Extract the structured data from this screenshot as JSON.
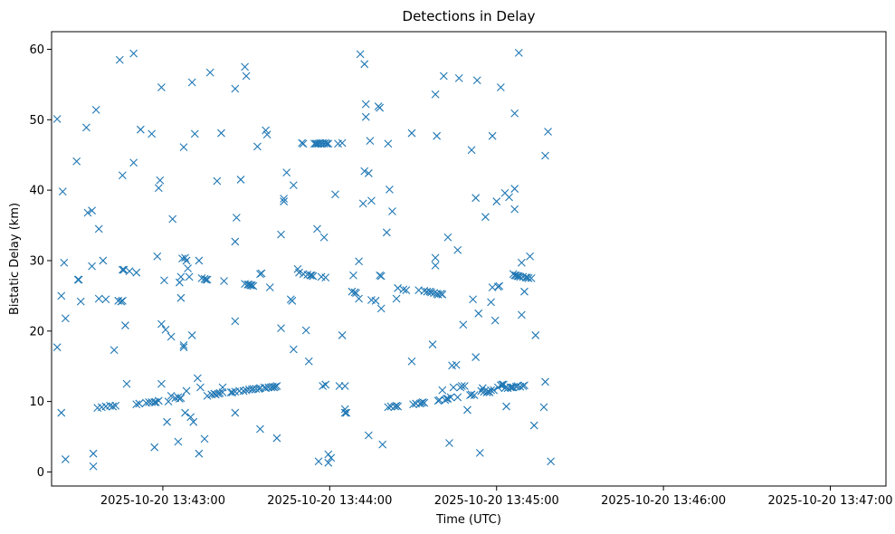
{
  "chart_data": {
    "type": "scatter",
    "title": "Detections in Delay",
    "xlabel": "Time (UTC)",
    "ylabel": "Bistatic Delay (km)",
    "x_unit": "UTC time",
    "xlim": [
      "2025-10-20 13:42:20",
      "2025-10-20 13:47:20"
    ],
    "ylim": [
      -2,
      62.5
    ],
    "xticks": [
      "2025-10-20 13:43:00",
      "2025-10-20 13:44:00",
      "2025-10-20 13:45:00",
      "2025-10-20 13:46:00",
      "2025-10-20 13:47:00"
    ],
    "yticks": [
      0,
      10,
      20,
      30,
      40,
      50,
      60
    ],
    "marker": "x",
    "color": "#1f77b4",
    "grid": false,
    "x_start": "2025-10-20 13:42:20",
    "points": [
      [
        2.0,
        50.1
      ],
      [
        2.0,
        17.7
      ],
      [
        3.5,
        25.0
      ],
      [
        3.5,
        8.4
      ],
      [
        4.0,
        39.8
      ],
      [
        4.5,
        29.7
      ],
      [
        5.0,
        21.8
      ],
      [
        5.0,
        1.8
      ],
      [
        9.0,
        44.1
      ],
      [
        9.5,
        27.3
      ],
      [
        9.8,
        27.3
      ],
      [
        10.5,
        24.2
      ],
      [
        12.5,
        48.9
      ],
      [
        13.0,
        36.8
      ],
      [
        14.5,
        37.1
      ],
      [
        14.5,
        29.2
      ],
      [
        15.0,
        2.6
      ],
      [
        15.0,
        0.8
      ],
      [
        16.0,
        51.4
      ],
      [
        17.0,
        34.5
      ],
      [
        17.0,
        24.6
      ],
      [
        18.5,
        30.0
      ],
      [
        19.5,
        24.5
      ],
      [
        16.5,
        9.1
      ],
      [
        18.0,
        9.2
      ],
      [
        19.5,
        9.3
      ],
      [
        21.0,
        9.4
      ],
      [
        22.0,
        9.3
      ],
      [
        23.0,
        9.4
      ],
      [
        22.5,
        17.3
      ],
      [
        24.0,
        24.3
      ],
      [
        25.0,
        24.2
      ],
      [
        25.5,
        24.3
      ],
      [
        24.5,
        58.5
      ],
      [
        25.5,
        42.1
      ],
      [
        25.5,
        28.7
      ],
      [
        26.0,
        28.7
      ],
      [
        26.5,
        20.8
      ],
      [
        27.0,
        12.5
      ],
      [
        28.0,
        28.5
      ],
      [
        29.5,
        59.4
      ],
      [
        29.5,
        43.9
      ],
      [
        30.5,
        28.3
      ],
      [
        30.5,
        9.6
      ],
      [
        31.5,
        9.7
      ],
      [
        32.0,
        48.6
      ],
      [
        34.0,
        9.8
      ],
      [
        35.0,
        9.9
      ],
      [
        36.0,
        9.9
      ],
      [
        37.0,
        9.9
      ],
      [
        37.5,
        9.9
      ],
      [
        38.5,
        10.1
      ],
      [
        36.0,
        48.0
      ],
      [
        37.0,
        3.5
      ],
      [
        38.0,
        30.6
      ],
      [
        38.5,
        40.3
      ],
      [
        39.0,
        41.4
      ],
      [
        39.5,
        54.6
      ],
      [
        39.5,
        12.5
      ],
      [
        39.5,
        21.0
      ],
      [
        41.0,
        20.2
      ],
      [
        40.5,
        27.2
      ],
      [
        41.5,
        7.1
      ],
      [
        42.0,
        10.0
      ],
      [
        43.0,
        10.8
      ],
      [
        43.0,
        19.2
      ],
      [
        43.5,
        35.9
      ],
      [
        44.5,
        10.5
      ],
      [
        45.5,
        10.6
      ],
      [
        45.5,
        4.3
      ],
      [
        46.0,
        10.4
      ],
      [
        46.5,
        10.5
      ],
      [
        46.0,
        26.9
      ],
      [
        46.5,
        27.7
      ],
      [
        46.5,
        24.7
      ],
      [
        47.0,
        30.3
      ],
      [
        47.5,
        18.0
      ],
      [
        47.5,
        17.7
      ],
      [
        47.5,
        46.1
      ],
      [
        48.0,
        30.4
      ],
      [
        48.0,
        8.4
      ],
      [
        48.5,
        30.0
      ],
      [
        48.5,
        11.5
      ],
      [
        49.0,
        28.9
      ],
      [
        49.5,
        27.7
      ],
      [
        50.0,
        7.8
      ],
      [
        51.0,
        7.1
      ],
      [
        50.5,
        55.3
      ],
      [
        50.5,
        19.4
      ],
      [
        51.5,
        48.0
      ],
      [
        53.0,
        30.0
      ],
      [
        52.5,
        13.3
      ],
      [
        53.0,
        2.6
      ],
      [
        53.5,
        12.0
      ],
      [
        54.0,
        27.5
      ],
      [
        55.0,
        27.4
      ],
      [
        55.5,
        27.3
      ],
      [
        56.0,
        27.3
      ],
      [
        55.0,
        4.7
      ],
      [
        56.0,
        10.8
      ],
      [
        57.0,
        56.7
      ],
      [
        57.5,
        11.0
      ],
      [
        58.5,
        11.1
      ],
      [
        59.0,
        11.0
      ],
      [
        59.5,
        41.3
      ],
      [
        60.0,
        11.1
      ],
      [
        60.5,
        11.2
      ],
      [
        61.0,
        48.1
      ],
      [
        61.5,
        12.0
      ],
      [
        61.5,
        11.3
      ],
      [
        62.0,
        27.1
      ],
      [
        64.5,
        11.3
      ],
      [
        65.0,
        11.3
      ],
      [
        66.0,
        11.4
      ],
      [
        66.0,
        54.4
      ],
      [
        66.0,
        32.7
      ],
      [
        66.0,
        21.4
      ],
      [
        66.5,
        36.1
      ],
      [
        66.0,
        8.4
      ],
      [
        67.5,
        11.5
      ],
      [
        68.0,
        41.5
      ],
      [
        69.0,
        11.5
      ],
      [
        69.5,
        57.5
      ],
      [
        69.5,
        26.7
      ],
      [
        70.0,
        56.2
      ],
      [
        70.5,
        26.6
      ],
      [
        71.0,
        26.6
      ],
      [
        71.5,
        26.5
      ],
      [
        72.0,
        26.5
      ],
      [
        72.5,
        26.4
      ],
      [
        70.0,
        11.6
      ],
      [
        71.0,
        11.7
      ],
      [
        72.0,
        11.7
      ],
      [
        72.5,
        11.8
      ],
      [
        73.5,
        11.8
      ],
      [
        74.0,
        46.2
      ],
      [
        74.5,
        11.8
      ],
      [
        75.0,
        28.1
      ],
      [
        75.0,
        11.9
      ],
      [
        75.0,
        6.1
      ],
      [
        75.5,
        28.2
      ],
      [
        76.5,
        12.0
      ],
      [
        77.0,
        48.5
      ],
      [
        77.0,
        11.9
      ],
      [
        77.5,
        47.9
      ],
      [
        78.0,
        12.0
      ],
      [
        78.5,
        26.2
      ],
      [
        79.0,
        12.0
      ],
      [
        79.5,
        12.1
      ],
      [
        80.0,
        12.0
      ],
      [
        80.5,
        12.1
      ],
      [
        81.0,
        12.2
      ],
      [
        81.0,
        4.8
      ],
      [
        82.5,
        33.7
      ],
      [
        82.5,
        20.4
      ],
      [
        83.5,
        38.8
      ],
      [
        83.5,
        38.4
      ],
      [
        84.5,
        42.5
      ],
      [
        86.0,
        24.5
      ],
      [
        86.5,
        24.3
      ],
      [
        87.0,
        40.7
      ],
      [
        87.0,
        17.4
      ],
      [
        88.5,
        28.8
      ],
      [
        89.0,
        28.3
      ],
      [
        90.0,
        46.7
      ],
      [
        90.5,
        46.6
      ],
      [
        90.5,
        28.1
      ],
      [
        91.5,
        20.1
      ],
      [
        92.0,
        28.0
      ],
      [
        92.5,
        15.7
      ],
      [
        93.0,
        27.9
      ],
      [
        93.5,
        27.9
      ],
      [
        94.0,
        27.8
      ],
      [
        94.5,
        46.6
      ],
      [
        95.0,
        46.6
      ],
      [
        95.5,
        46.6
      ],
      [
        96.0,
        46.6
      ],
      [
        96.5,
        46.7
      ],
      [
        97.0,
        46.6
      ],
      [
        97.5,
        46.7
      ],
      [
        98.0,
        46.6
      ],
      [
        98.5,
        46.7
      ],
      [
        99.0,
        46.6
      ],
      [
        99.5,
        46.6
      ],
      [
        95.5,
        34.5
      ],
      [
        96.0,
        1.5
      ],
      [
        97.0,
        27.7
      ],
      [
        97.5,
        12.2
      ],
      [
        98.0,
        33.3
      ],
      [
        98.5,
        12.4
      ],
      [
        98.5,
        27.6
      ],
      [
        99.5,
        2.5
      ],
      [
        99.5,
        1.3
      ],
      [
        100.5,
        2.0
      ],
      [
        102.0,
        39.4
      ],
      [
        103.0,
        46.6
      ],
      [
        103.5,
        12.2
      ],
      [
        104.5,
        46.7
      ],
      [
        104.5,
        19.4
      ],
      [
        105.5,
        12.2
      ],
      [
        105.5,
        8.9
      ],
      [
        105.5,
        8.4
      ],
      [
        106.0,
        8.4
      ],
      [
        108.0,
        25.6
      ],
      [
        108.5,
        27.9
      ],
      [
        109.0,
        25.5
      ],
      [
        109.5,
        25.4
      ],
      [
        110.5,
        29.9
      ],
      [
        110.5,
        24.6
      ],
      [
        111.0,
        59.3
      ],
      [
        112.0,
        38.1
      ],
      [
        112.5,
        57.9
      ],
      [
        112.5,
        42.7
      ],
      [
        113.0,
        52.2
      ],
      [
        113.0,
        50.4
      ],
      [
        114.0,
        42.4
      ],
      [
        114.0,
        5.2
      ],
      [
        114.5,
        47.0
      ],
      [
        115.0,
        38.5
      ],
      [
        115.0,
        24.4
      ],
      [
        116.5,
        24.3
      ],
      [
        117.5,
        51.9
      ],
      [
        118.0,
        51.7
      ],
      [
        118.0,
        27.9
      ],
      [
        118.5,
        27.8
      ],
      [
        118.5,
        23.2
      ],
      [
        119.0,
        3.9
      ],
      [
        120.5,
        34.0
      ],
      [
        121.0,
        46.6
      ],
      [
        121.0,
        9.2
      ],
      [
        121.5,
        40.1
      ],
      [
        122.0,
        9.3
      ],
      [
        122.5,
        37.0
      ],
      [
        123.5,
        9.3
      ],
      [
        124.0,
        9.4
      ],
      [
        124.0,
        24.6
      ],
      [
        124.5,
        9.3
      ],
      [
        124.5,
        26.1
      ],
      [
        126.5,
        25.9
      ],
      [
        127.5,
        25.8
      ],
      [
        129.5,
        48.1
      ],
      [
        129.5,
        15.7
      ],
      [
        130.0,
        9.6
      ],
      [
        131.0,
        9.7
      ],
      [
        132.0,
        25.8
      ],
      [
        132.5,
        9.7
      ],
      [
        133.0,
        9.8
      ],
      [
        133.5,
        9.9
      ],
      [
        134.0,
        9.8
      ],
      [
        134.0,
        25.7
      ],
      [
        135.0,
        25.6
      ],
      [
        136.0,
        25.6
      ],
      [
        136.5,
        25.5
      ],
      [
        137.0,
        18.1
      ],
      [
        137.5,
        25.4
      ],
      [
        138.0,
        30.4
      ],
      [
        138.0,
        29.3
      ],
      [
        138.0,
        53.6
      ],
      [
        138.5,
        47.7
      ],
      [
        138.5,
        25.3
      ],
      [
        139.0,
        10.1
      ],
      [
        139.0,
        25.2
      ],
      [
        139.5,
        10.2
      ],
      [
        140.0,
        25.3
      ],
      [
        140.5,
        25.2
      ],
      [
        140.5,
        11.6
      ],
      [
        141.0,
        56.2
      ],
      [
        141.5,
        10.2
      ],
      [
        142.0,
        10.4
      ],
      [
        142.5,
        10.4
      ],
      [
        142.5,
        33.3
      ],
      [
        143.0,
        4.1
      ],
      [
        143.5,
        10.6
      ],
      [
        144.0,
        15.1
      ],
      [
        144.5,
        12.0
      ],
      [
        145.5,
        15.2
      ],
      [
        146.0,
        31.5
      ],
      [
        146.0,
        10.6
      ],
      [
        146.5,
        55.9
      ],
      [
        147.0,
        12.0
      ],
      [
        147.5,
        12.2
      ],
      [
        148.0,
        20.9
      ],
      [
        148.5,
        12.2
      ],
      [
        149.5,
        8.8
      ],
      [
        150.5,
        10.9
      ],
      [
        151.0,
        45.7
      ],
      [
        151.0,
        11.0
      ],
      [
        151.5,
        24.5
      ],
      [
        152.0,
        10.9
      ],
      [
        152.5,
        38.9
      ],
      [
        152.5,
        16.3
      ],
      [
        153.0,
        55.6
      ],
      [
        153.5,
        22.5
      ],
      [
        154.0,
        2.7
      ],
      [
        154.5,
        11.5
      ],
      [
        155.0,
        11.9
      ],
      [
        155.5,
        11.4
      ],
      [
        156.0,
        36.2
      ],
      [
        156.5,
        11.3
      ],
      [
        157.0,
        11.4
      ],
      [
        157.5,
        11.3
      ],
      [
        158.0,
        24.1
      ],
      [
        158.0,
        11.6
      ],
      [
        158.5,
        47.7
      ],
      [
        158.5,
        26.2
      ],
      [
        159.0,
        11.6
      ],
      [
        159.5,
        21.5
      ],
      [
        160.0,
        38.4
      ],
      [
        160.5,
        26.3
      ],
      [
        160.5,
        12.0
      ],
      [
        161.0,
        26.4
      ],
      [
        161.5,
        12.3
      ],
      [
        161.5,
        54.6
      ],
      [
        162.0,
        12.4
      ],
      [
        162.5,
        12.4
      ],
      [
        163.0,
        39.6
      ],
      [
        163.0,
        11.9
      ],
      [
        163.5,
        9.3
      ],
      [
        164.0,
        11.9
      ],
      [
        164.5,
        39.0
      ],
      [
        165.0,
        12.0
      ],
      [
        165.5,
        12.0
      ],
      [
        166.0,
        28.1
      ],
      [
        166.0,
        12.0
      ],
      [
        166.5,
        40.2
      ],
      [
        166.5,
        27.9
      ],
      [
        166.5,
        37.3
      ],
      [
        166.5,
        50.9
      ],
      [
        167.0,
        27.9
      ],
      [
        167.0,
        12.1
      ],
      [
        167.5,
        27.8
      ],
      [
        167.5,
        12.2
      ],
      [
        168.0,
        59.5
      ],
      [
        168.0,
        27.8
      ],
      [
        168.5,
        27.7
      ],
      [
        168.5,
        12.1
      ],
      [
        169.0,
        29.7
      ],
      [
        169.0,
        22.3
      ],
      [
        169.5,
        27.7
      ],
      [
        169.5,
        12.2
      ],
      [
        170.0,
        25.6
      ],
      [
        170.0,
        12.3
      ],
      [
        170.5,
        27.6
      ],
      [
        171.0,
        27.6
      ],
      [
        171.5,
        27.5
      ],
      [
        172.0,
        30.6
      ],
      [
        172.5,
        27.5
      ],
      [
        174.0,
        19.4
      ],
      [
        173.5,
        6.6
      ],
      [
        177.0,
        9.2
      ],
      [
        177.5,
        44.9
      ],
      [
        177.5,
        12.8
      ],
      [
        178.5,
        48.3
      ],
      [
        179.5,
        1.5
      ]
    ]
  }
}
